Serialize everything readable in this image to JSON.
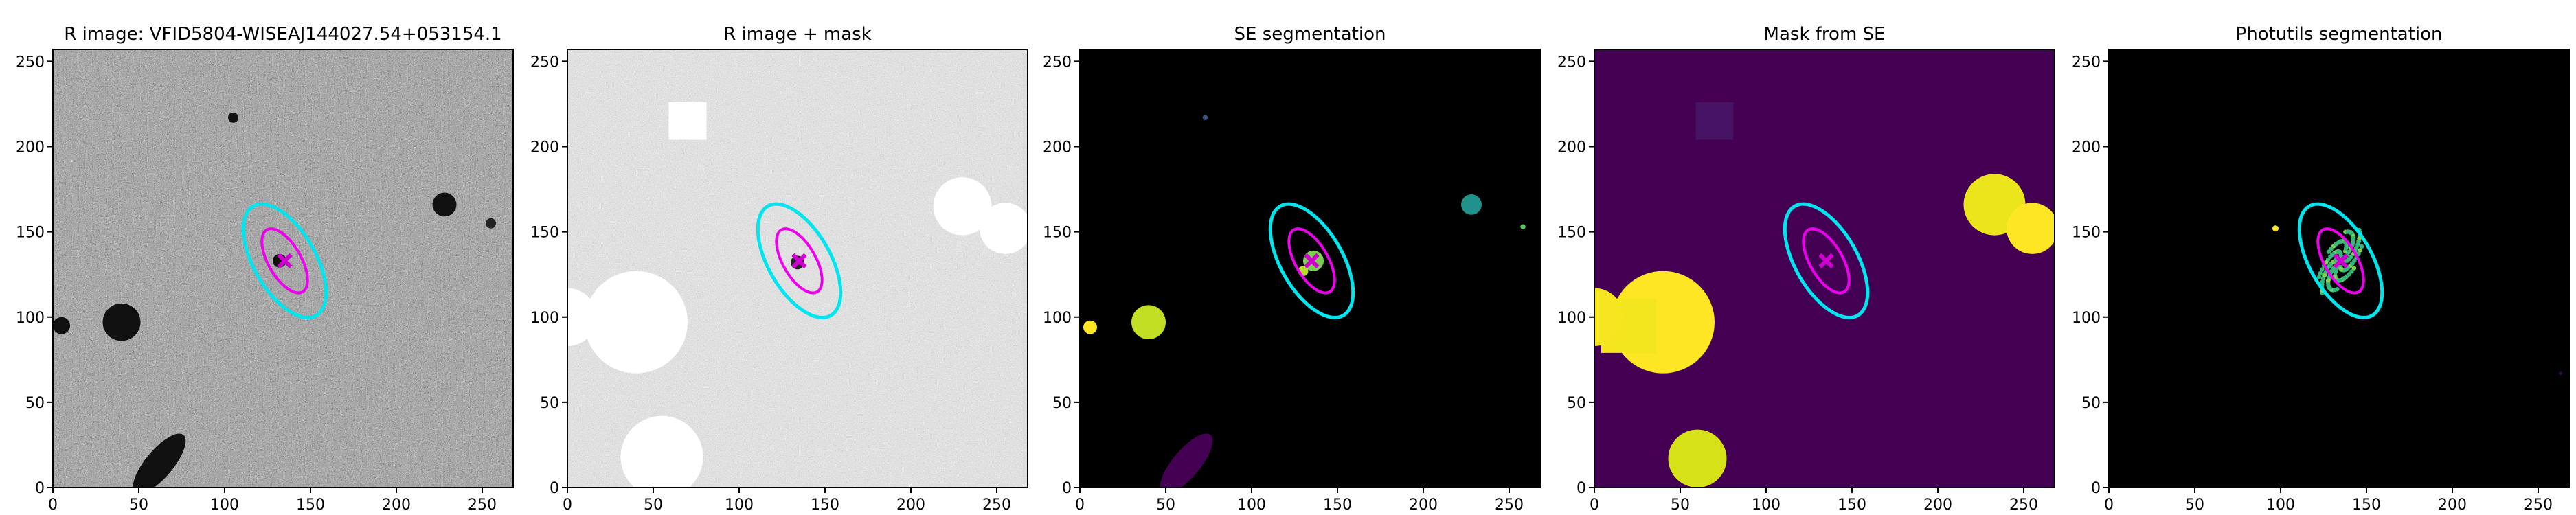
{
  "chart_data": [
    {
      "type": "image",
      "title": "R image: VFID5804-WISEAJ144027.54+053154.1",
      "xlim": [
        0,
        268
      ],
      "ylim": [
        0,
        257
      ],
      "xticks": [
        0,
        50,
        100,
        150,
        200,
        250
      ],
      "yticks": [
        0,
        50,
        100,
        150,
        200,
        250
      ]
    },
    {
      "type": "image",
      "title": "R image + mask",
      "xlim": [
        0,
        268
      ],
      "ylim": [
        0,
        257
      ],
      "xticks": [
        0,
        50,
        100,
        150,
        200,
        250
      ],
      "yticks": [
        0,
        50,
        100,
        150,
        200,
        250
      ]
    },
    {
      "type": "image",
      "title": "SE segmentation",
      "xlim": [
        0,
        268
      ],
      "ylim": [
        0,
        257
      ],
      "xticks": [
        0,
        50,
        100,
        150,
        200,
        250
      ],
      "yticks": [
        0,
        50,
        100,
        150,
        200,
        250
      ]
    },
    {
      "type": "image",
      "title": "Mask from SE",
      "xlim": [
        0,
        268
      ],
      "ylim": [
        0,
        257
      ],
      "xticks": [
        0,
        50,
        100,
        150,
        200,
        250
      ],
      "yticks": [
        0,
        50,
        100,
        150,
        200,
        250
      ]
    },
    {
      "type": "image",
      "title": "Photutils segmentation",
      "xlim": [
        0,
        268
      ],
      "ylim": [
        0,
        257
      ],
      "xticks": [
        0,
        50,
        100,
        150,
        200,
        250
      ],
      "yticks": [
        0,
        50,
        100,
        150,
        200,
        250
      ]
    }
  ]
}
